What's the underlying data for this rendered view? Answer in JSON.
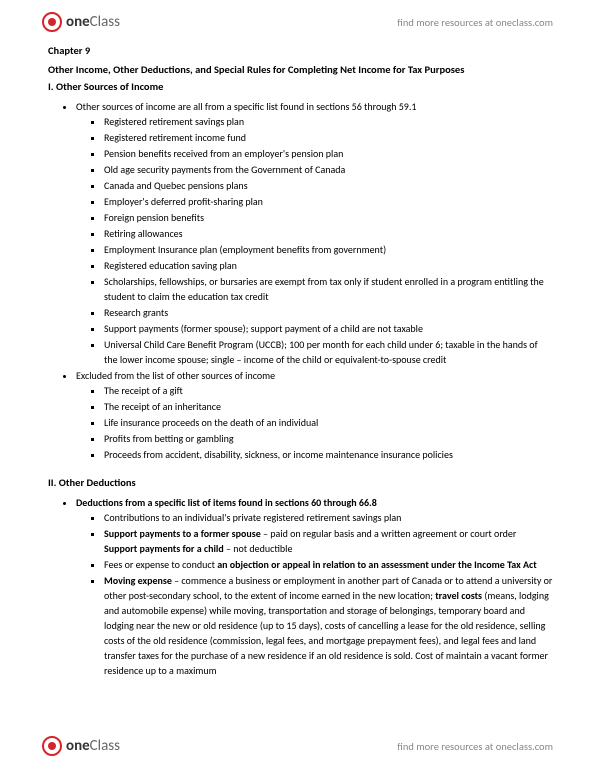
{
  "brand": {
    "part1": "one",
    "part2": "Class"
  },
  "link": "find more resources at oneclass.com",
  "chapter": "Chapter 9",
  "title": "Other Income, Other Deductions, and Special Rules for Completing Net Income for Tax Purposes",
  "s1": {
    "head": "I.  Other Sources of Income",
    "intro": "Other sources of income are all from a specific list found in sections 56 through 59.1",
    "items": [
      "Registered retirement savings plan",
      "Registered retirement income fund",
      "Pension benefits received from an employer's pension plan",
      "Old age security payments from the Government of Canada",
      "Canada and Quebec pensions plans",
      "Employer's deferred profit-sharing plan",
      "Foreign pension benefits",
      "Retiring allowances",
      "Employment Insurance plan (employment benefits from government)",
      "Registered education saving plan",
      "Scholarships, fellowships, or bursaries are exempt from tax only if student enrolled in a program entitling the student to claim the education tax credit",
      "Research grants",
      "Support payments (former spouse); support payment of a child are not taxable",
      "Universal Child Care Benefit Program (UCCB); 100 per month for each child under 6; taxable in the hands of the lower income spouse; single – income of the child or equivalent-to-spouse credit"
    ],
    "excl_intro": "Excluded from the list of other sources of income",
    "excl": [
      "The receipt of a gift",
      "The receipt of an inheritance",
      "Life insurance proceeds on the death of an individual",
      "Profits from betting or gambling",
      "Proceeds from accident, disability, sickness, or income maintenance insurance policies"
    ]
  },
  "s2": {
    "head": "II. Other Deductions",
    "intro_b": "Deductions from a specific list of items found in sections 60 through 66.8",
    "d1": "Contributions to an individual's private registered retirement savings plan",
    "d2_b": "Support payments to a former spouse",
    "d2_r": " – paid on regular basis and a written agreement or court order",
    "d2_sub_b": "Support payments for a child",
    "d2_sub_r": " – not deductible",
    "d3_a": "Fees or expense to conduct ",
    "d3_b": "an objection or appeal in relation to an assessment under the Income Tax Act",
    "d4_b": "Moving expense",
    "d4_a": " – commence a business or employment in another part of Canada or to attend a university or other post-secondary school, to the extent of income earned in the new location; ",
    "d4_tc_b": "travel costs",
    "d4_rest": " (means, lodging and automobile expense) while moving, transportation and storage of belongings, temporary board and lodging near the new or old residence (up to 15 days), costs of cancelling a lease for the old residence, selling costs of the old residence (commission, legal fees, and mortgage prepayment fees), and legal fees and land transfer taxes for the purchase of a new residence if an old residence is sold. Cost of maintain a vacant former residence up to a maximum"
  }
}
